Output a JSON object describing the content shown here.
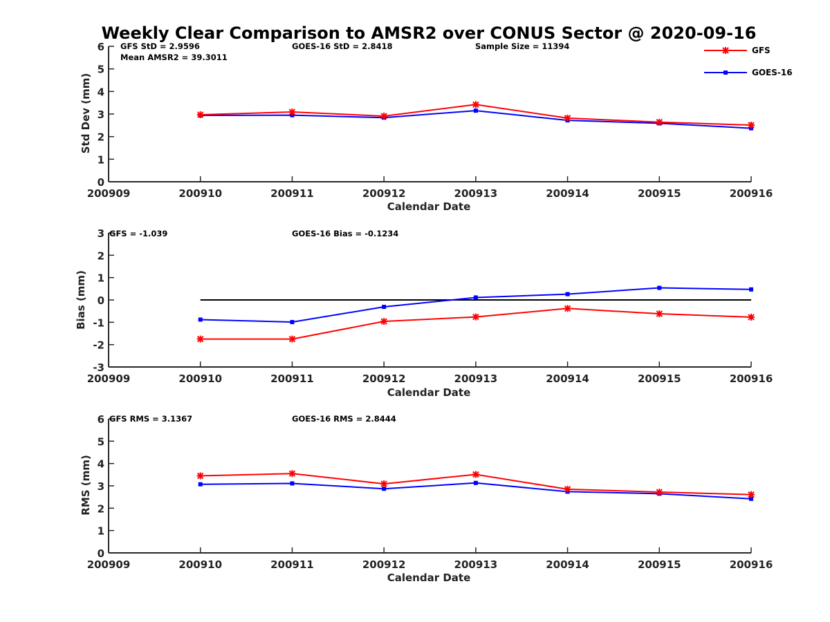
{
  "title": "Weekly Clear Comparison to AMSR2 over CONUS Sector @ 2020-09-16",
  "colors": {
    "gfs": "#ff0000",
    "goes": "#0000ff",
    "zero_line": "#000000"
  },
  "legend": {
    "placement": "top-right",
    "items": [
      {
        "label": "GFS",
        "marker": "asterisk",
        "color": "#ff0000"
      },
      {
        "label": "GOES-16",
        "marker": "square",
        "color": "#0000ff"
      }
    ]
  },
  "annotations": {
    "stddev": {
      "gfs_stat": "GFS StD = 2.9596",
      "mean_amsr2": "Mean AMSR2 = 39.3011",
      "goes_stat": "GOES-16 StD = 2.8418",
      "sample_size": "Sample Size = 11394"
    },
    "bias": {
      "gfs_stat": "GFS = -1.039",
      "goes_stat": "GOES-16 Bias  = -0.1234"
    },
    "rms": {
      "gfs_stat": "GFS RMS = 3.1367",
      "goes_stat": "GOES-16 RMS = 2.8444"
    }
  },
  "chart_data": [
    {
      "id": "stddev",
      "type": "line",
      "xlabel": "Calendar Date",
      "ylabel": "Std Dev (mm)",
      "categories": [
        "200909",
        "200910",
        "200911",
        "200912",
        "200913",
        "200914",
        "200915",
        "200916"
      ],
      "ylim": [
        0,
        6
      ],
      "yticks": [
        "0",
        "1",
        "2",
        "3",
        "4",
        "5",
        "6"
      ],
      "zero_line": false,
      "series": [
        {
          "name": "GFS",
          "values": [
            null,
            2.97,
            3.09,
            2.91,
            3.42,
            2.82,
            2.64,
            2.51
          ]
        },
        {
          "name": "GOES-16",
          "values": [
            null,
            2.94,
            2.95,
            2.84,
            3.15,
            2.72,
            2.59,
            2.37
          ]
        }
      ]
    },
    {
      "id": "bias",
      "type": "line",
      "xlabel": "Calendar Date",
      "ylabel": "Bias (mm)",
      "categories": [
        "200909",
        "200910",
        "200911",
        "200912",
        "200913",
        "200914",
        "200915",
        "200916"
      ],
      "ylim": [
        -3,
        3
      ],
      "yticks": [
        "-3",
        "-2",
        "-1",
        "0",
        "1",
        "2",
        "3"
      ],
      "zero_line": true,
      "series": [
        {
          "name": "GFS",
          "values": [
            null,
            -1.75,
            -1.75,
            -0.96,
            -0.76,
            -0.38,
            -0.62,
            -0.77
          ]
        },
        {
          "name": "GOES-16",
          "values": [
            null,
            -0.88,
            -0.99,
            -0.31,
            0.11,
            0.26,
            0.54,
            0.47
          ]
        }
      ]
    },
    {
      "id": "rms",
      "type": "line",
      "xlabel": "Calendar Date",
      "ylabel": "RMS (mm)",
      "categories": [
        "200909",
        "200910",
        "200911",
        "200912",
        "200913",
        "200914",
        "200915",
        "200916"
      ],
      "ylim": [
        0,
        6
      ],
      "yticks": [
        "0",
        "1",
        "2",
        "3",
        "4",
        "5",
        "6"
      ],
      "zero_line": false,
      "series": [
        {
          "name": "GFS",
          "values": [
            null,
            3.45,
            3.55,
            3.09,
            3.51,
            2.85,
            2.72,
            2.61
          ]
        },
        {
          "name": "GOES-16",
          "values": [
            null,
            3.07,
            3.11,
            2.87,
            3.13,
            2.74,
            2.65,
            2.42
          ]
        }
      ]
    }
  ]
}
